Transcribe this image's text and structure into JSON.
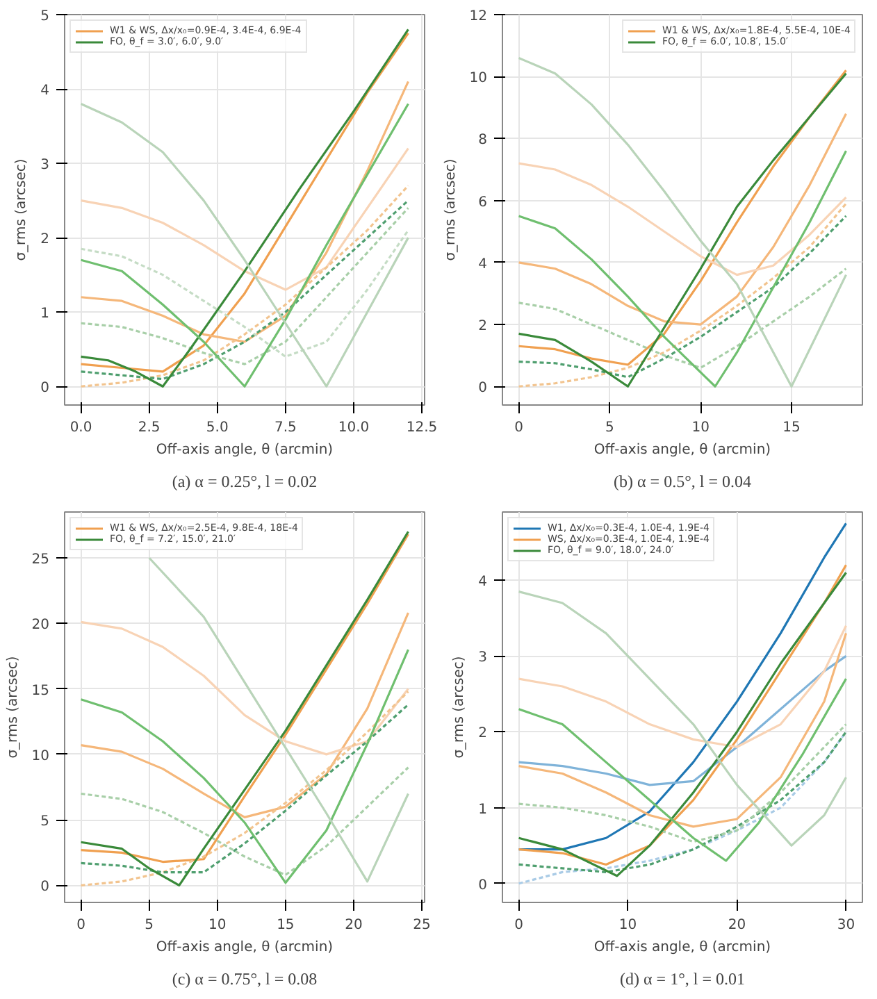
{
  "chart_data": [
    {
      "type": "line",
      "xlabel": "Off-axis angle, θ (arcmin)",
      "ylabel": "σ_rms (arcsec)",
      "annotations": [
        "(a) α = 0.25°, l = 0.02"
      ],
      "grid": true,
      "legend": "top left",
      "line_style": "solid",
      "xlim": [
        -0.6,
        12.6
      ],
      "ylim": [
        -0.25,
        5
      ],
      "xticks": [
        {
          "value": 0,
          "label": "0.0"
        },
        {
          "value": 2.5,
          "label": "2.5"
        },
        {
          "value": 5,
          "label": "5.0"
        },
        {
          "value": 7.5,
          "label": "7.5"
        },
        {
          "value": 10,
          "label": "10.0"
        },
        {
          "value": 12.5,
          "label": "12.5"
        }
      ],
      "yticks": [
        0,
        1,
        2,
        3,
        4,
        5
      ],
      "x": [
        0,
        1.5,
        3,
        4.5,
        6,
        7.5,
        9,
        10.5,
        12
      ],
      "series": [
        {
          "name": "W1 & WS, Δx/x₀=0.9E-4, 3.4E-4, 6.9E-4",
          "color": "#f0a050",
          "values": [
            0.3,
            0.25,
            0.2,
            0.55,
            1.25,
            2.15,
            3.05,
            3.95,
            4.75
          ]
        },
        {
          "color": "#f5b77a",
          "values": [
            1.2,
            1.15,
            0.95,
            0.7,
            0.6,
            0.95,
            1.8,
            2.9,
            4.1
          ]
        },
        {
          "color": "#f8d3b5",
          "values": [
            2.5,
            2.4,
            2.2,
            1.9,
            1.55,
            1.3,
            1.6,
            2.4,
            3.2
          ]
        },
        {
          "color": "#f2c48f",
          "line_style": "dashed",
          "values": [
            0,
            0.05,
            0.15,
            0.35,
            0.7,
            1.1,
            1.6,
            2.1,
            2.7
          ]
        },
        {
          "color": "#4f9f6f",
          "line_style": "dashed",
          "values": [
            0.2,
            0.15,
            0.1,
            0.3,
            0.6,
            1.0,
            1.5,
            2.0,
            2.5
          ]
        },
        {
          "color": "#a8cfa8",
          "line_style": "dashed",
          "values": [
            0.85,
            0.8,
            0.65,
            0.45,
            0.3,
            0.6,
            1.2,
            1.8,
            2.4
          ]
        },
        {
          "color": "#c5dcc5",
          "line_style": "dashed",
          "values": [
            1.85,
            1.75,
            1.5,
            1.15,
            0.8,
            0.4,
            0.6,
            1.3,
            2.1
          ]
        },
        {
          "name": "FO, θ_f = 3.0′, 6.0′, 9.0′",
          "color": "#3a8a3a",
          "x": [
            0,
            1,
            2,
            3,
            4,
            6,
            8,
            10,
            12
          ],
          "values": [
            0.4,
            0.35,
            0.2,
            0,
            0.5,
            1.55,
            2.65,
            3.7,
            4.8
          ]
        },
        {
          "color": "#6fbf6f",
          "values": [
            1.7,
            1.55,
            1.1,
            0.6,
            0,
            0.9,
            1.9,
            2.85,
            3.8
          ],
          "x": [
            0,
            1.5,
            3,
            4.5,
            6,
            7.5,
            9,
            10.5,
            12
          ]
        },
        {
          "color": "#b9d4b9",
          "values": [
            3.8,
            3.55,
            3.15,
            2.5,
            1.7,
            0.85,
            0,
            1.0,
            2.0
          ]
        }
      ]
    },
    {
      "type": "line",
      "xlabel": "Off-axis angle, θ (arcmin)",
      "ylabel": "σ_rms (arcsec)",
      "annotations": [
        "(b) α = 0.5°, l = 0.04"
      ],
      "grid": true,
      "legend": "top right",
      "line_style": "solid",
      "xlim": [
        -0.9,
        18.9
      ],
      "ylim": [
        -0.6,
        12
      ],
      "xticks": [
        0,
        5,
        10,
        15
      ],
      "yticks": [
        0,
        2,
        4,
        6,
        8,
        10,
        12
      ],
      "x": [
        0,
        2,
        4,
        6,
        8,
        10,
        12,
        14,
        16,
        18
      ],
      "series": [
        {
          "name": "W1 & WS, Δx/x₀=1.8E-4, 5.5E-4, 10E-4",
          "color": "#f0a050",
          "values": [
            1.3,
            1.2,
            0.9,
            0.7,
            1.7,
            3.4,
            5.3,
            7.1,
            8.7,
            10.2
          ]
        },
        {
          "color": "#f5b77a",
          "values": [
            4.0,
            3.8,
            3.3,
            2.6,
            2.1,
            2.0,
            2.9,
            4.5,
            6.5,
            8.8
          ]
        },
        {
          "color": "#f8d3b5",
          "values": [
            7.2,
            7.0,
            6.5,
            5.8,
            5.0,
            4.2,
            3.6,
            3.9,
            4.9,
            6.1
          ]
        },
        {
          "color": "#f2c48f",
          "line_style": "dashed",
          "values": [
            0,
            0.1,
            0.3,
            0.6,
            1.1,
            1.8,
            2.6,
            3.5,
            4.5,
            5.9
          ]
        },
        {
          "color": "#4f9f6f",
          "line_style": "dashed",
          "values": [
            0.8,
            0.75,
            0.55,
            0.3,
            0.9,
            1.6,
            2.4,
            3.2,
            4.3,
            5.5
          ]
        },
        {
          "color": "#a8cfa8",
          "line_style": "dashed",
          "values": [
            2.7,
            2.5,
            2.0,
            1.5,
            1.0,
            0.6,
            1.3,
            2.1,
            2.9,
            3.8
          ]
        },
        {
          "name": "FO, θ_f = 6.0′, 10.8′, 15.0′",
          "color": "#3a8a3a",
          "values": [
            1.7,
            1.5,
            0.8,
            0,
            1.9,
            3.8,
            5.8,
            7.3,
            8.7,
            10.1
          ]
        },
        {
          "color": "#6fbf6f",
          "x": [
            0,
            2,
            4,
            6,
            8,
            10.8,
            12,
            14,
            16,
            18
          ],
          "values": [
            5.5,
            5.1,
            4.1,
            2.9,
            1.6,
            0,
            1.1,
            3.2,
            5.3,
            7.6
          ]
        },
        {
          "color": "#b9d4b9",
          "x": [
            0,
            2,
            4,
            6,
            8,
            10,
            12,
            15,
            16,
            18
          ],
          "values": [
            10.6,
            10.1,
            9.1,
            7.8,
            6.3,
            4.7,
            3.3,
            0,
            1.2,
            3.6
          ]
        }
      ]
    },
    {
      "type": "line",
      "xlabel": "Off-axis angle, θ (arcmin)",
      "ylabel": "σ_rms (arcsec)",
      "annotations": [
        "(c) α = 0.75°, l = 0.08"
      ],
      "grid": true,
      "legend": "top left",
      "line_style": "solid",
      "xlim": [
        -1.2,
        25.2
      ],
      "ylim": [
        -1.3,
        28.5
      ],
      "xticks": [
        0,
        5,
        10,
        15,
        20,
        25
      ],
      "yticks": [
        0,
        5,
        10,
        15,
        20,
        25
      ],
      "x": [
        0,
        3,
        6,
        9,
        12,
        15,
        18,
        21,
        24
      ],
      "series": [
        {
          "name": "W1 & WS, Δx/x₀=2.5E-4, 9.8E-4, 18E-4",
          "color": "#f0a050",
          "values": [
            2.7,
            2.5,
            1.8,
            2.0,
            6.8,
            11.5,
            16.5,
            21.5,
            26.8
          ]
        },
        {
          "color": "#f5b77a",
          "values": [
            10.7,
            10.2,
            8.9,
            7.0,
            5.2,
            6.0,
            8.5,
            13.5,
            20.8
          ]
        },
        {
          "color": "#f8d3b5",
          "values": [
            20.1,
            19.6,
            18.2,
            16.0,
            13.0,
            11.0,
            10.0,
            11.0,
            15.0
          ]
        },
        {
          "color": "#f2c48f",
          "line_style": "dashed",
          "values": [
            0,
            0.3,
            1.0,
            2.2,
            4.0,
            6.3,
            8.8,
            11.7,
            14.8
          ]
        },
        {
          "color": "#4f9f6f",
          "line_style": "dashed",
          "values": [
            1.7,
            1.5,
            1.0,
            1.0,
            3.2,
            5.7,
            8.4,
            11.0,
            13.8
          ]
        },
        {
          "color": "#a8cfa8",
          "line_style": "dashed",
          "values": [
            7.0,
            6.6,
            5.6,
            4.0,
            2.2,
            0.8,
            3.0,
            6.0,
            9.0
          ]
        },
        {
          "name": "FO, θ_f = 7.2′, 15.0′, 21.0′",
          "color": "#3a8a3a",
          "x": [
            0,
            3,
            5,
            7.2,
            9,
            12,
            15,
            18,
            21,
            24
          ],
          "values": [
            3.3,
            2.8,
            1.3,
            0,
            2.8,
            7.3,
            11.8,
            16.8,
            21.8,
            27.0
          ]
        },
        {
          "color": "#6fbf6f",
          "values": [
            14.2,
            13.2,
            11.0,
            8.2,
            4.8,
            0.2,
            4.2,
            10.8,
            18.0
          ]
        },
        {
          "color": "#b9d4b9",
          "x": [
            5,
            9,
            12,
            15,
            18,
            21,
            24
          ],
          "values": [
            25,
            20.5,
            15.5,
            10.5,
            5.5,
            0.3,
            7.0
          ]
        }
      ]
    },
    {
      "type": "line",
      "xlabel": "Off-axis angle, θ (arcmin)",
      "ylabel": "σ_rms (arcsec)",
      "annotations": [
        "(d) α = 1°, l = 0.01"
      ],
      "grid": true,
      "legend": "top left",
      "line_style": "solid",
      "xlim": [
        -1.5,
        31.5
      ],
      "ylim": [
        -0.25,
        4.9
      ],
      "xticks": [
        0,
        10,
        20,
        30
      ],
      "yticks": [
        0,
        1,
        2,
        3,
        4
      ],
      "x": [
        0,
        4,
        8,
        12,
        16,
        20,
        24,
        28,
        30
      ],
      "series": [
        {
          "name": "W1, Δx/x₀=0.3E-4, 1.0E-4, 1.9E-4",
          "color": "#1f77b4",
          "values": [
            0.45,
            0.45,
            0.6,
            0.95,
            1.6,
            2.4,
            3.3,
            4.3,
            4.75
          ]
        },
        {
          "color": "#7fb3d9",
          "values": [
            1.6,
            1.55,
            1.45,
            1.3,
            1.35,
            1.8,
            2.3,
            2.8,
            3.0
          ]
        },
        {
          "color": "#a9cbe6",
          "line_style": "dashed",
          "values": [
            0,
            0.15,
            0.2,
            0.3,
            0.45,
            0.7,
            1.0,
            1.6,
            2.0
          ]
        },
        {
          "name": "WS, Δx/x₀=0.3E-4, 1.0E-4, 1.9E-4",
          "color": "#f0a050",
          "values": [
            0.45,
            0.4,
            0.25,
            0.5,
            1.1,
            1.9,
            2.8,
            3.7,
            4.2
          ]
        },
        {
          "color": "#f5b77a",
          "values": [
            1.55,
            1.45,
            1.2,
            0.9,
            0.75,
            0.85,
            1.4,
            2.4,
            3.3
          ]
        },
        {
          "color": "#f8d3b5",
          "values": [
            2.7,
            2.6,
            2.4,
            2.1,
            1.9,
            1.8,
            2.1,
            2.8,
            3.4
          ]
        },
        {
          "color": "#4f9f6f",
          "line_style": "dashed",
          "values": [
            0.25,
            0.2,
            0.15,
            0.25,
            0.45,
            0.75,
            1.1,
            1.6,
            2.0
          ]
        },
        {
          "color": "#a8cfa8",
          "line_style": "dashed",
          "values": [
            1.05,
            1.0,
            0.9,
            0.75,
            0.55,
            0.7,
            1.2,
            1.8,
            2.1
          ]
        },
        {
          "name": "FO, θ_f = 9.0′, 18.0′, 24.0′",
          "color": "#3a8a3a",
          "x": [
            0,
            4,
            9,
            12,
            16,
            20,
            24,
            28,
            30
          ],
          "values": [
            0.6,
            0.45,
            0.1,
            0.5,
            1.2,
            2.0,
            2.9,
            3.7,
            4.1
          ]
        },
        {
          "color": "#6fbf6f",
          "x": [
            0,
            4,
            8,
            12,
            16,
            19,
            22,
            26,
            30
          ],
          "values": [
            2.3,
            2.1,
            1.6,
            1.1,
            0.6,
            0.3,
            0.8,
            1.7,
            2.7
          ]
        },
        {
          "color": "#b9d4b9",
          "x": [
            0,
            4,
            8,
            12,
            16,
            20,
            25,
            28,
            30
          ],
          "values": [
            3.85,
            3.7,
            3.3,
            2.7,
            2.1,
            1.3,
            0.5,
            0.9,
            1.4
          ]
        }
      ]
    }
  ]
}
